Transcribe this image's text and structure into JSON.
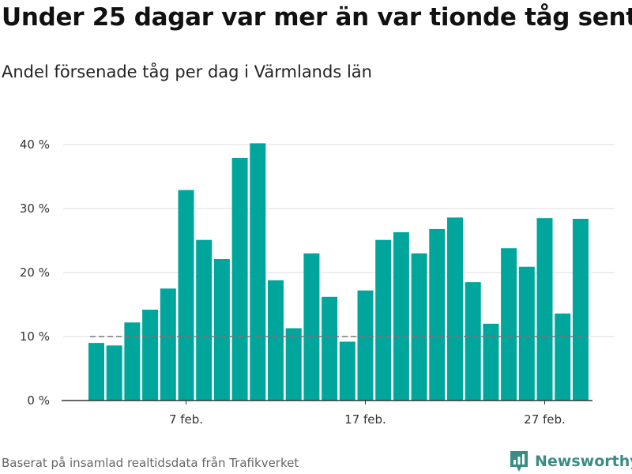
{
  "header": {
    "title": "Under 25 dagar var mer än var tionde tåg sent",
    "subtitle": "Andel försenade tåg per dag i Värmlands län"
  },
  "footer": {
    "source": "Baserat på insamlad realtidsdata från Trafikverket",
    "brand": "Newsworthy"
  },
  "colors": {
    "bar": "#00a69c",
    "grid": "#dddddd",
    "reference_line": "#777777",
    "axis": "#333333",
    "brand": "#3b8c84"
  },
  "chart_data": {
    "type": "bar",
    "x": [
      "2022-02-02",
      "2022-02-03",
      "2022-02-04",
      "2022-02-05",
      "2022-02-06",
      "2022-02-07",
      "2022-02-08",
      "2022-02-09",
      "2022-02-10",
      "2022-02-11",
      "2022-02-12",
      "2022-02-13",
      "2022-02-14",
      "2022-02-15",
      "2022-02-16",
      "2022-02-17",
      "2022-02-18",
      "2022-02-19",
      "2022-02-20",
      "2022-02-21",
      "2022-02-22",
      "2022-02-23",
      "2022-02-24",
      "2022-02-25",
      "2022-02-26",
      "2022-02-27",
      "2022-02-28",
      "2022-03-01"
    ],
    "series": [
      {
        "values": [
          9.0,
          8.6,
          12.2,
          14.2,
          17.5,
          32.9,
          25.1,
          22.1,
          37.9,
          40.2,
          18.8,
          11.3,
          23.0,
          16.2,
          9.2,
          17.2,
          25.1,
          26.3,
          23.0,
          26.8,
          28.6,
          18.5,
          12.0,
          23.8,
          20.9,
          28.5,
          13.6,
          28.4
        ]
      }
    ],
    "xticks": [
      {
        "date": "2022-02-07",
        "label": "7 feb."
      },
      {
        "date": "2022-02-17",
        "label": "17 feb."
      },
      {
        "date": "2022-02-27",
        "label": "27 feb."
      }
    ],
    "yticks": [
      {
        "value": 0,
        "label": "0 %"
      },
      {
        "value": 10,
        "label": "10 %"
      },
      {
        "value": 20,
        "label": "20 %"
      },
      {
        "value": 30,
        "label": "30 %"
      },
      {
        "value": 40,
        "label": "40 %"
      }
    ],
    "ylim": [
      0,
      40
    ],
    "reference_line": 10,
    "grid": true,
    "legend": "none"
  }
}
